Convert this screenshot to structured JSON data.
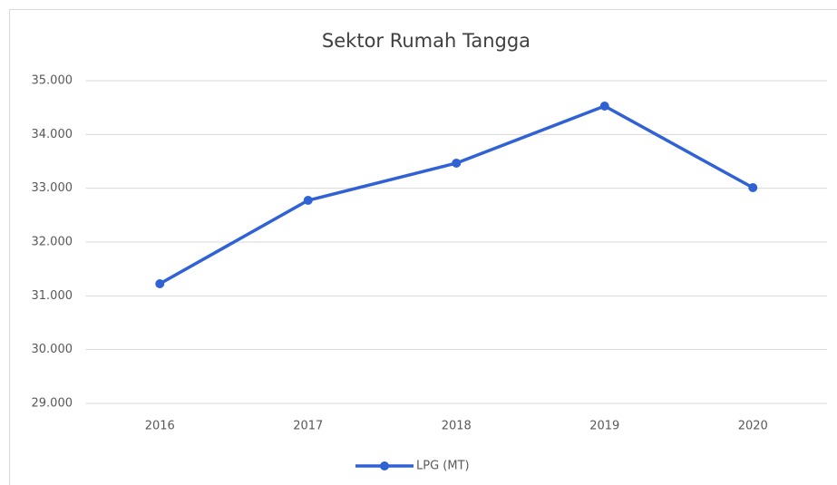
{
  "chart_data": {
    "type": "line",
    "title": "Sektor Rumah Tangga",
    "categories": [
      "2016",
      "2017",
      "2018",
      "2019",
      "2020"
    ],
    "series": [
      {
        "name": "LPG (MT)",
        "color": "#3062d6",
        "values": [
          31225,
          32775,
          33467,
          34528,
          33011
        ]
      }
    ],
    "ylim": [
      29000,
      35000
    ],
    "yticks": [
      {
        "value": 29000,
        "label": "29.000"
      },
      {
        "value": 30000,
        "label": "30.000"
      },
      {
        "value": 31000,
        "label": "31.000"
      },
      {
        "value": 32000,
        "label": "32.000"
      },
      {
        "value": 33000,
        "label": "33.000"
      },
      {
        "value": 34000,
        "label": "34.000"
      },
      {
        "value": 35000,
        "label": "35.000"
      }
    ],
    "grid": true,
    "legend": "bottom"
  }
}
